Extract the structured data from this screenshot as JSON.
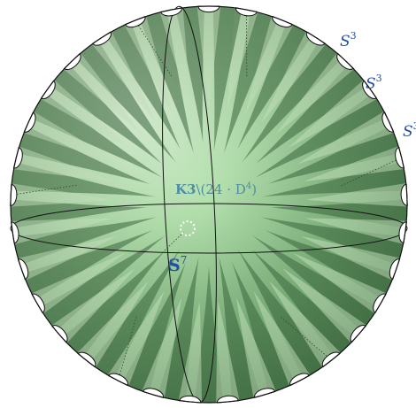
{
  "labels": {
    "center_space": "K3",
    "center_removed": "\\(24 · D",
    "center_exponent": "4",
    "center_close": ")",
    "sphere_base": "S",
    "sphere_exponent": "7",
    "handle_base": "S",
    "handle_exponent": "3"
  },
  "counts": {
    "rim_handles": 33
  },
  "colors": {
    "sphere_light": "#d8f7d4",
    "sphere_mid": "#9fd19b",
    "sphere_dark": "#4f8650",
    "spoke_dark": "#3c6b40",
    "spoke_light": "#cfeec8",
    "label_blue": "#1f4fa8",
    "center_label": "#4f8fa0",
    "outline": "#111111",
    "hole_fill": "#ffffff"
  }
}
